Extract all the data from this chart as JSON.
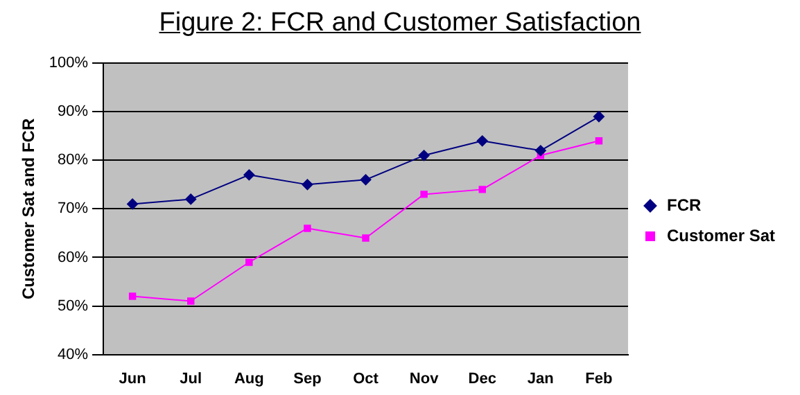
{
  "chart_data": {
    "type": "line",
    "title": "Figure 2: FCR and Customer Satisfaction",
    "ylabel": "Customer Sat and FCR",
    "categories": [
      "Jun",
      "Jul",
      "Aug",
      "Sep",
      "Oct",
      "Nov",
      "Dec",
      "Jan",
      "Feb"
    ],
    "series": [
      {
        "name": "FCR",
        "color": "#000080",
        "marker": "diamond",
        "values": [
          71,
          72,
          77,
          75,
          76,
          81,
          84,
          82,
          89
        ]
      },
      {
        "name": "Customer Sat",
        "color": "#ff00ff",
        "marker": "square",
        "values": [
          52,
          51,
          59,
          66,
          64,
          73,
          74,
          81,
          84
        ]
      }
    ],
    "ylim": [
      40,
      100
    ],
    "yticks": [
      {
        "value": 40,
        "label": "40%"
      },
      {
        "value": 50,
        "label": "50%"
      },
      {
        "value": 60,
        "label": "60%"
      },
      {
        "value": 70,
        "label": "70%"
      },
      {
        "value": 80,
        "label": "80%"
      },
      {
        "value": 90,
        "label": "90%"
      },
      {
        "value": 100,
        "label": "100%"
      }
    ],
    "grid": "y",
    "legend": "right",
    "line_style": "solid"
  }
}
